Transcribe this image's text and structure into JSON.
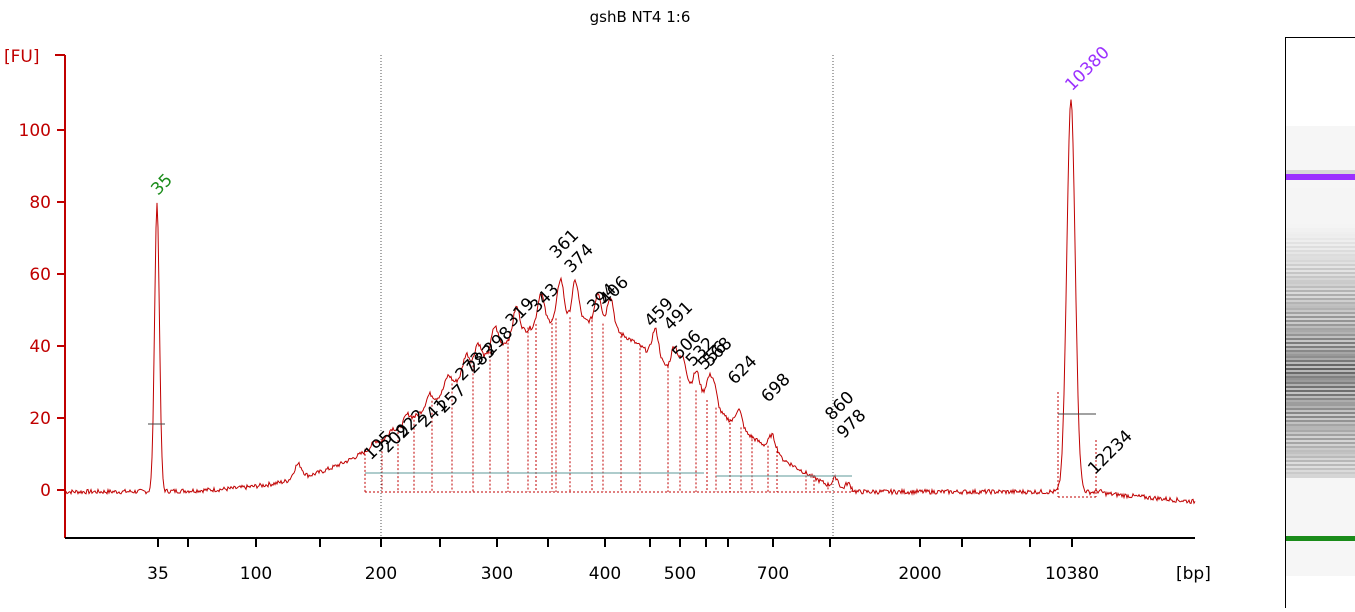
{
  "chart_data": {
    "type": "line",
    "title": "gshB NT4 1:6",
    "yunit": "[FU]",
    "xunit": "[bp]",
    "yticks": [
      0,
      20,
      40,
      60,
      80,
      100
    ],
    "ylim": [
      -15,
      120
    ],
    "xtick_labels": [
      "35",
      "100",
      "200",
      "300",
      "400",
      "500",
      "700",
      "2000",
      "10380"
    ],
    "grid": false,
    "legend": "none",
    "line_color": "#c00000",
    "marker_peaks": [
      {
        "label": "35",
        "size_bp": 35,
        "fu": 80,
        "color": "#1a8c1a"
      },
      {
        "label": "10380",
        "size_bp": 10380,
        "fu": 109,
        "color": "#9b30ff"
      }
    ],
    "peaks": [
      {
        "label": "195",
        "size_bp": 195,
        "fu": 7
      },
      {
        "label": "209",
        "size_bp": 209,
        "fu": 9
      },
      {
        "label": "222",
        "size_bp": 222,
        "fu": 13
      },
      {
        "label": "241",
        "size_bp": 241,
        "fu": 16
      },
      {
        "label": "257",
        "size_bp": 257,
        "fu": 20
      },
      {
        "label": "273",
        "size_bp": 273,
        "fu": 29
      },
      {
        "label": "283",
        "size_bp": 283,
        "fu": 31
      },
      {
        "label": "298",
        "size_bp": 298,
        "fu": 36
      },
      {
        "label": "319",
        "size_bp": 319,
        "fu": 44
      },
      {
        "label": "343",
        "size_bp": 343,
        "fu": 48
      },
      {
        "label": "361",
        "size_bp": 361,
        "fu": 63
      },
      {
        "label": "374",
        "size_bp": 374,
        "fu": 59
      },
      {
        "label": "394",
        "size_bp": 394,
        "fu": 48
      },
      {
        "label": "406",
        "size_bp": 406,
        "fu": 50
      },
      {
        "label": "459",
        "size_bp": 459,
        "fu": 44
      },
      {
        "label": "491",
        "size_bp": 491,
        "fu": 43
      },
      {
        "label": "506",
        "size_bp": 506,
        "fu": 35
      },
      {
        "label": "532",
        "size_bp": 532,
        "fu": 33
      },
      {
        "label": "556",
        "size_bp": 556,
        "fu": 32
      },
      {
        "label": "568",
        "size_bp": 568,
        "fu": 33
      },
      {
        "label": "624",
        "size_bp": 624,
        "fu": 28
      },
      {
        "label": "698",
        "size_bp": 698,
        "fu": 23
      },
      {
        "label": "860",
        "size_bp": 860,
        "fu": 18
      },
      {
        "label": "978",
        "size_bp": 978,
        "fu": 13
      },
      {
        "label": "12234",
        "size_bp": 12234,
        "fu": 3
      }
    ],
    "upper_marker_band_color": "#9b30ff",
    "lower_marker_band_color": "#1a8c1a"
  }
}
